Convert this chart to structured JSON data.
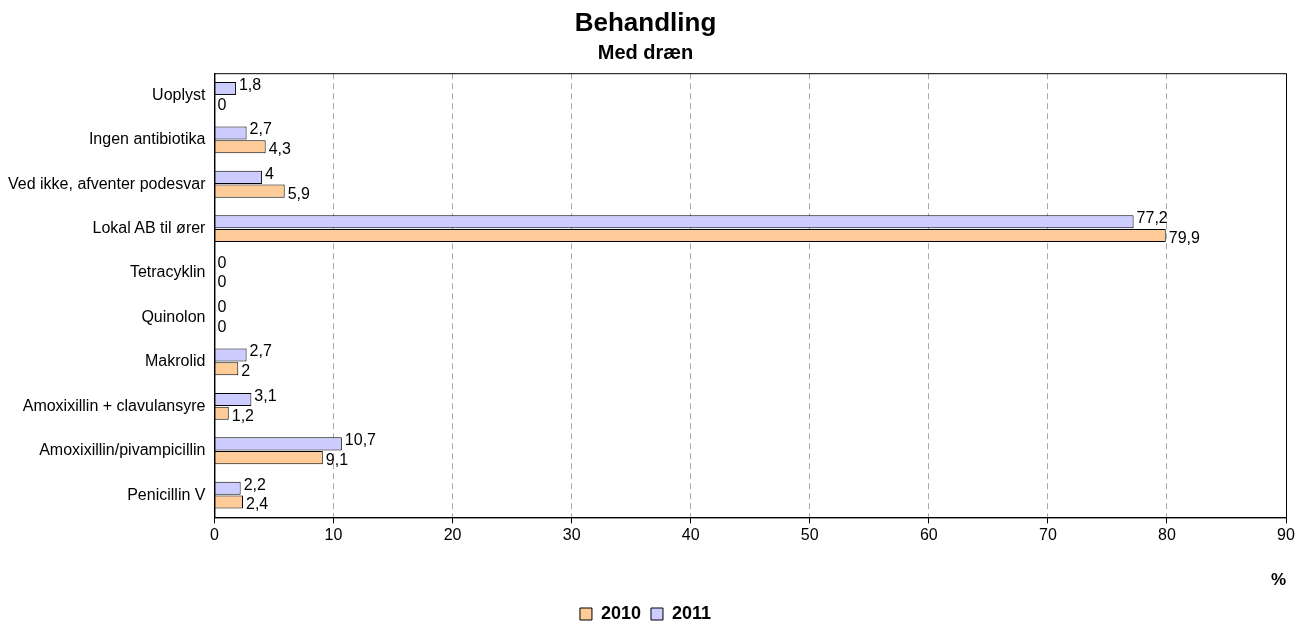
{
  "chart_data": {
    "type": "bar",
    "orientation": "horizontal",
    "title": "Behandling",
    "subtitle": "Med dræn",
    "xlabel": "%",
    "categories": [
      "Uoplyst",
      "Ingen antibiotika",
      "Ved ikke, afventer podesvar",
      "Lokal AB til ører",
      "Tetracyklin",
      "Quinolon",
      "Makrolid",
      "Amoxixillin + clavulansyre",
      "Amoxixillin/pivampicillin",
      "Penicillin V"
    ],
    "series": [
      {
        "name": "2010",
        "color": "#ffcc99",
        "values": [
          0,
          4.3,
          5.9,
          79.9,
          0,
          0,
          2,
          1.2,
          9.1,
          2.4
        ],
        "value_labels": [
          "0",
          "4,3",
          "5,9",
          "79,9",
          "0",
          "0",
          "2",
          "1,2",
          "9,1",
          "2,4"
        ]
      },
      {
        "name": "2011",
        "color": "#ccccff",
        "values": [
          1.8,
          2.7,
          4,
          77.2,
          0,
          0,
          2.7,
          3.1,
          10.7,
          2.2
        ],
        "value_labels": [
          "1,8",
          "2,7",
          "4",
          "77,2",
          "0",
          "0",
          "2,7",
          "3,1",
          "10,7",
          "2,2"
        ]
      }
    ],
    "xlim": [
      0,
      90
    ],
    "xticks": [
      0,
      10,
      20,
      30,
      40,
      50,
      60,
      70,
      80,
      90
    ],
    "grid": "x",
    "legend": "bottom"
  }
}
